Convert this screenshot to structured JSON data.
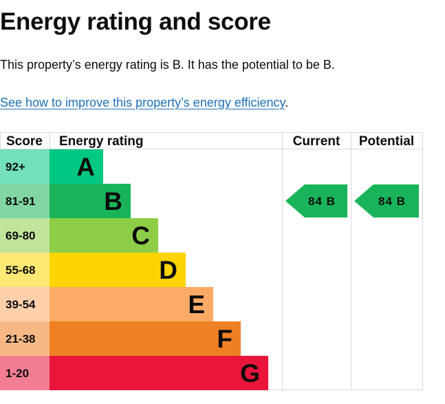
{
  "title": "Energy rating and score",
  "summary": "This property’s energy rating is B. It has the potential to be B.",
  "improve_link": {
    "text": "See how to improve this property’s energy efficiency",
    "suffix": "."
  },
  "chart_data": {
    "type": "bar",
    "headers": {
      "score": "Score",
      "rating": "Energy rating",
      "current": "Current",
      "potential": "Potential"
    },
    "bands": [
      {
        "score": "92+",
        "letter": "A",
        "color": "#00c781"
      },
      {
        "score": "81-91",
        "letter": "B",
        "color": "#19b459"
      },
      {
        "score": "69-80",
        "letter": "C",
        "color": "#8dce46"
      },
      {
        "score": "55-68",
        "letter": "D",
        "color": "#ffd500"
      },
      {
        "score": "39-54",
        "letter": "E",
        "color": "#fcaa65"
      },
      {
        "score": "21-38",
        "letter": "F",
        "color": "#ef8023"
      },
      {
        "score": "1-20",
        "letter": "G",
        "color": "#e9153b"
      }
    ],
    "current": {
      "value": 84,
      "letter": "B",
      "label": "84 B"
    },
    "potential": {
      "value": 84,
      "letter": "B",
      "label": "84 B"
    }
  }
}
